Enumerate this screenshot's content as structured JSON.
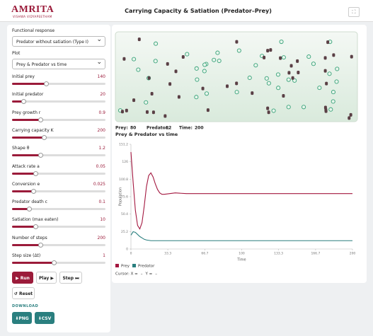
{
  "header": {
    "logo": "AMRITA",
    "logo_sub": "VISHWA VIDYAPEETHAM",
    "title": "Carrying Capacity & Satiation (Predator–Prey)"
  },
  "controls": {
    "functional_response": {
      "label": "Functional response",
      "selected": "Predator without satiation (Type I)"
    },
    "plot": {
      "label": "Plot",
      "selected": "Prey & Predator vs time"
    },
    "sliders": [
      {
        "label": "Initial prey",
        "value": "140"
      },
      {
        "label": "Initial predator",
        "value": "20"
      },
      {
        "label": "Prey growth r",
        "value": "0.9"
      },
      {
        "label": "Carrying capacity K",
        "value": "200"
      },
      {
        "label": "Shape θ",
        "value": "1.2"
      },
      {
        "label": "Attack rate a",
        "value": "0.05"
      },
      {
        "label": "Conversion e",
        "value": "0.025"
      },
      {
        "label": "Predator death c",
        "value": "0.1"
      },
      {
        "label": "Satiation (max eaten)",
        "value": "10"
      },
      {
        "label": "Number of steps",
        "value": "200"
      },
      {
        "label": "Step size (Δt)",
        "value": "1"
      }
    ],
    "buttons": {
      "run": "▶ Run",
      "play": "Play ▶",
      "step": "Step ⏭",
      "reset": "↺ Reset"
    },
    "download": {
      "heading": "DOWNLOAD",
      "png": "⬇PNG",
      "csv": "⬇CSV"
    }
  },
  "status": {
    "prey_label": "Prey:",
    "prey": "80",
    "predator_label": "Predator:",
    "predator": "12",
    "time_label": "Time:",
    "time": "200"
  },
  "chart_data": {
    "type": "line",
    "title": "Prey & Predator vs time",
    "x_label": "Time",
    "y_label": "Population",
    "x": [
      0,
      2,
      4,
      6,
      8,
      10,
      12,
      14,
      16,
      18,
      20,
      22,
      24,
      26,
      28,
      30,
      35,
      40,
      50,
      60,
      80,
      100,
      150,
      200
    ],
    "series": [
      {
        "name": "Prey",
        "color": "#a3173f",
        "values": [
          140,
          96,
          56,
          34,
          29,
          38,
          62,
          90,
          106,
          110,
          104,
          94,
          86,
          81,
          79,
          79,
          80,
          81,
          80,
          80,
          80,
          80,
          80,
          80
        ]
      },
      {
        "name": "Predator",
        "color": "#2a7f7f",
        "values": [
          20,
          25,
          24,
          21,
          18,
          16,
          14,
          13,
          12.5,
          12,
          12,
          12,
          12,
          12,
          12,
          12,
          12,
          12,
          12,
          12,
          12,
          12,
          12,
          12
        ]
      }
    ],
    "xlim": [
      0,
      200
    ],
    "ylim": [
      0,
      151.2
    ],
    "xticks": [
      0,
      33.3,
      66.7,
      100,
      133.3,
      166.7,
      200
    ],
    "yticks": [
      0,
      25.2,
      50.4,
      75.6,
      100.8,
      126,
      151.2
    ],
    "legend": "bottom-left"
  },
  "cursor": {
    "x_label": "Cursor: X =",
    "x_value": "–",
    "y_label": "Y =",
    "y_value": "–"
  }
}
